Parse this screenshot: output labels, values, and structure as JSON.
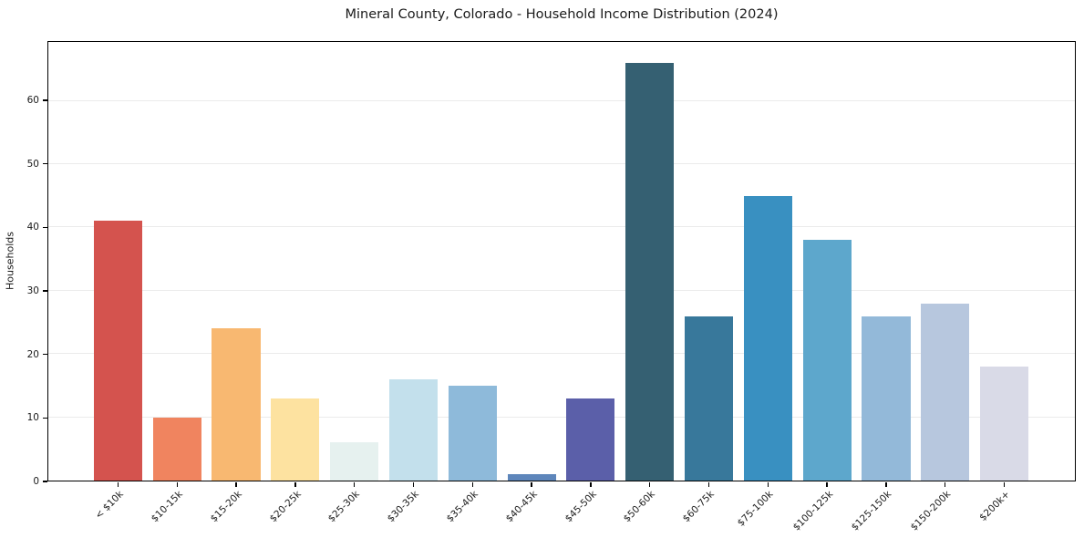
{
  "chart_data": {
    "type": "bar",
    "title": "Mineral County, Colorado - Household Income Distribution (2024)",
    "xlabel": "",
    "ylabel": "Households",
    "categories": [
      "< $10k",
      "$10-15k",
      "$15-20k",
      "$20-25k",
      "$25-30k",
      "$30-35k",
      "$35-40k",
      "$40-45k",
      "$45-50k",
      "$50-60k",
      "$60-75k",
      "$75-100k",
      "$100-125k",
      "$125-150k",
      "$150-200k",
      "$200k+"
    ],
    "values": [
      41,
      10,
      24,
      13,
      6,
      16,
      15,
      1,
      13,
      66,
      26,
      45,
      38,
      26,
      28,
      18
    ],
    "bar_colors": [
      "#d4534e",
      "#f0845f",
      "#f8b871",
      "#fde2a0",
      "#e6f1ef",
      "#c3e0ec",
      "#8ebada",
      "#5e86bb",
      "#5b5fa9",
      "#356072",
      "#38789b",
      "#3990c1",
      "#5da7cc",
      "#93b9d9",
      "#b7c7de",
      "#d9dae7"
    ],
    "yticks": [
      0,
      10,
      20,
      30,
      40,
      50,
      60
    ],
    "ylim": [
      0,
      69.3
    ],
    "grid": "horizontal-only",
    "gridline_color": "#ebebeb",
    "spine_color": "#000000",
    "background_color": "#ffffff",
    "legend": "none"
  }
}
